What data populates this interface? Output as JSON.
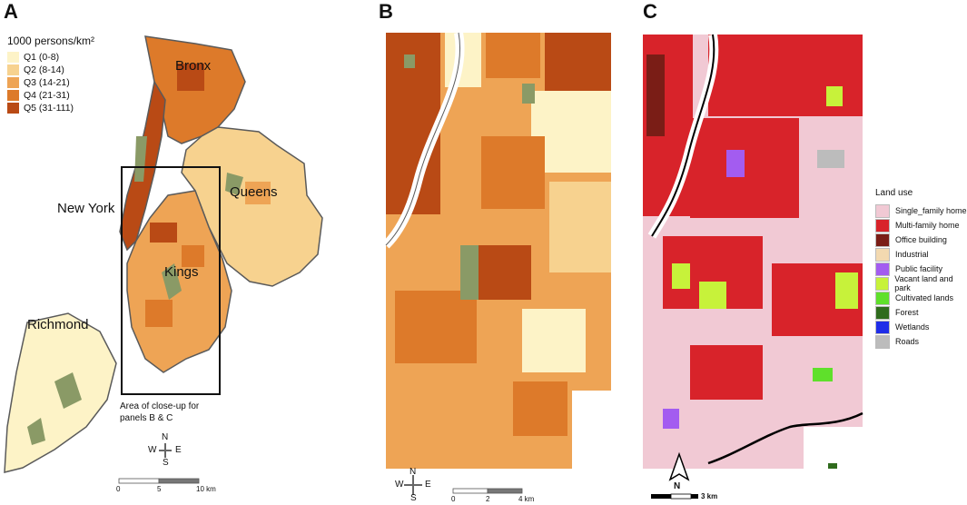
{
  "panels": {
    "a": {
      "letter": "A",
      "legend": {
        "title": "1000 persons/km²",
        "items": [
          {
            "label": "Q1 (0-8)",
            "color": "#fdf3c7"
          },
          {
            "label": "Q2 (8-14)",
            "color": "#f7d28f"
          },
          {
            "label": "Q3 (14-21)",
            "color": "#eea455"
          },
          {
            "label": "Q4 (21-31)",
            "color": "#dd7a2a"
          },
          {
            "label": "Q5 (31-111)",
            "color": "#b94a15"
          }
        ]
      },
      "labels": {
        "bronx": "Bronx",
        "queens": "Queens",
        "new_york": "New York",
        "kings": "Kings",
        "richmond": "Richmond"
      },
      "closeup_note_line1": "Area of close-up for",
      "closeup_note_line2": "panels B & C",
      "compass": {
        "n": "N",
        "s": "S",
        "w": "W",
        "e": "E"
      },
      "scale": {
        "start": "0",
        "mid": "5",
        "end": "10 km"
      }
    },
    "b": {
      "letter": "B",
      "compass": {
        "n": "N",
        "s": "S",
        "w": "W",
        "e": "E"
      },
      "scale": {
        "start": "0",
        "mid": "2",
        "end": "4 km"
      }
    },
    "c": {
      "letter": "C",
      "legend": {
        "title": "Land use",
        "items": [
          {
            "label": "Single_family home",
            "color": "#f1c9d4"
          },
          {
            "label": "Multi-family home",
            "color": "#d8232a"
          },
          {
            "label": "Office building",
            "color": "#7a1d16"
          },
          {
            "label": "Industrial",
            "color": "#f3d9b0"
          },
          {
            "label": "Public facility",
            "color": "#a35cf0"
          },
          {
            "label": "Vacant land and park",
            "color": "#c7f23a"
          },
          {
            "label": "Cultivated lands",
            "color": "#5fe02b"
          },
          {
            "label": "Forest",
            "color": "#2f6b1d"
          },
          {
            "label": "Wetlands",
            "color": "#1f2de8"
          },
          {
            "label": "Roads",
            "color": "#bcbcbc"
          }
        ]
      },
      "north": "N",
      "scale": {
        "end": "3 km"
      }
    }
  },
  "colors": {
    "park": "#8a9a66",
    "water": "#ffffff",
    "outline": "#5a5a5a"
  }
}
